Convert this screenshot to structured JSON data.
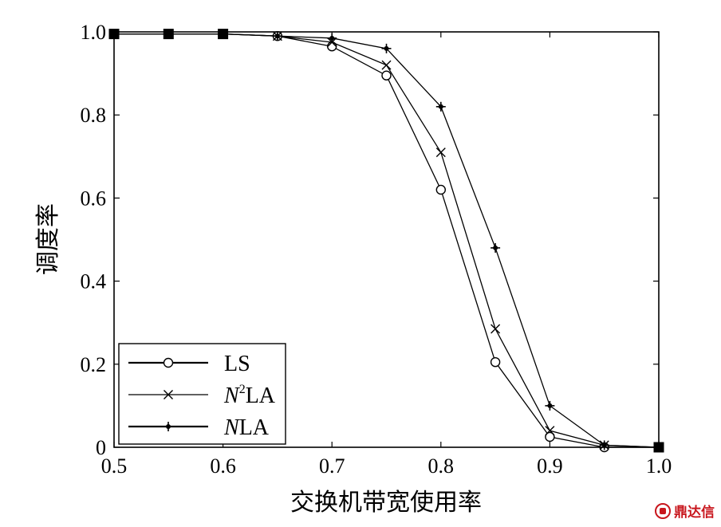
{
  "chart_data": {
    "type": "line",
    "xlabel": "交换机带宽使用率",
    "ylabel": "调度率",
    "xlim": [
      0.5,
      1.0
    ],
    "ylim": [
      0,
      1.0
    ],
    "xticks": [
      "0.5",
      "0.6",
      "0.7",
      "0.8",
      "0.9",
      "1.0"
    ],
    "yticks": [
      "0",
      "0.2",
      "0.4",
      "0.6",
      "0.8",
      "1.0"
    ],
    "grid": false,
    "legend_position": "bottom-left",
    "series": [
      {
        "name": "LS",
        "marker": "circle",
        "x": [
          0.5,
          0.55,
          0.6,
          0.65,
          0.7,
          0.75,
          0.8,
          0.85,
          0.9,
          0.95,
          1.0
        ],
        "y": [
          0.995,
          0.995,
          0.995,
          0.99,
          0.965,
          0.895,
          0.62,
          0.205,
          0.025,
          0.0,
          0.0
        ]
      },
      {
        "name": "N²LA",
        "name_parts": [
          "N",
          "2",
          "LA"
        ],
        "marker": "x",
        "x": [
          0.5,
          0.55,
          0.6,
          0.65,
          0.7,
          0.75,
          0.8,
          0.85,
          0.9,
          0.95,
          1.0
        ],
        "y": [
          0.995,
          0.995,
          0.995,
          0.99,
          0.975,
          0.92,
          0.71,
          0.285,
          0.04,
          0.005,
          0.0
        ]
      },
      {
        "name": "NLA",
        "name_parts": [
          "N",
          "",
          "LA"
        ],
        "marker": "star",
        "x": [
          0.5,
          0.55,
          0.6,
          0.65,
          0.7,
          0.75,
          0.8,
          0.85,
          0.9,
          0.95,
          1.0
        ],
        "y": [
          0.995,
          0.995,
          0.995,
          0.99,
          0.985,
          0.96,
          0.82,
          0.48,
          0.1,
          0.005,
          0.0
        ]
      }
    ]
  },
  "watermark": {
    "text": "鼎达信",
    "color": "#c8161d"
  }
}
